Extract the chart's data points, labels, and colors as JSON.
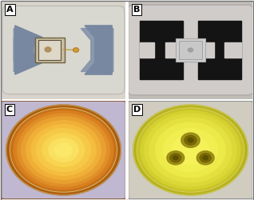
{
  "figure_size": [
    3.18,
    2.5
  ],
  "dpi": 100,
  "label_fontsize": 8,
  "panels": [
    "A",
    "B",
    "C",
    "D"
  ],
  "outer_bg": "#ffffff",
  "border_color": "#888888",
  "panel_A": {
    "bg": "#dcdad4",
    "body_bg": "#d0d0c4",
    "body_edge": "#b0b0a0",
    "frame_color": "#8090a4",
    "frame_edge": "#607080",
    "chip_outer": "#c8c0a0",
    "chip_inner": "#ddd8c0",
    "chip_edge": "#807050",
    "wire_color": "#c8a040",
    "bond_color": "#b89030"
  },
  "panel_B": {
    "bg": "#c8c4c0",
    "body_bg": "#d0ccca",
    "body_edge": "#a0a098",
    "frame_dark": "#181818",
    "chip_bg": "#c8c8c8",
    "chip_edge": "#909090"
  },
  "panel_C": {
    "outer_bg": "#b83c08",
    "inner_bg": "#c0b8d0",
    "glow_outer": "#c07010",
    "glow_mid": "#e09020",
    "glow_inner": "#f0c040",
    "glow_center": "#f8e068",
    "rim": "#e8d890"
  },
  "panel_D": {
    "outer_bg": "#b0b4c0",
    "inner_bg": "#d0ccc0",
    "circle_outer": "#c8c420",
    "circle_mid": "#d8d830",
    "circle_inner": "#e8e848",
    "spot_color": "#a09010",
    "spot_dark": "#786808",
    "rim": "#d8d060"
  }
}
